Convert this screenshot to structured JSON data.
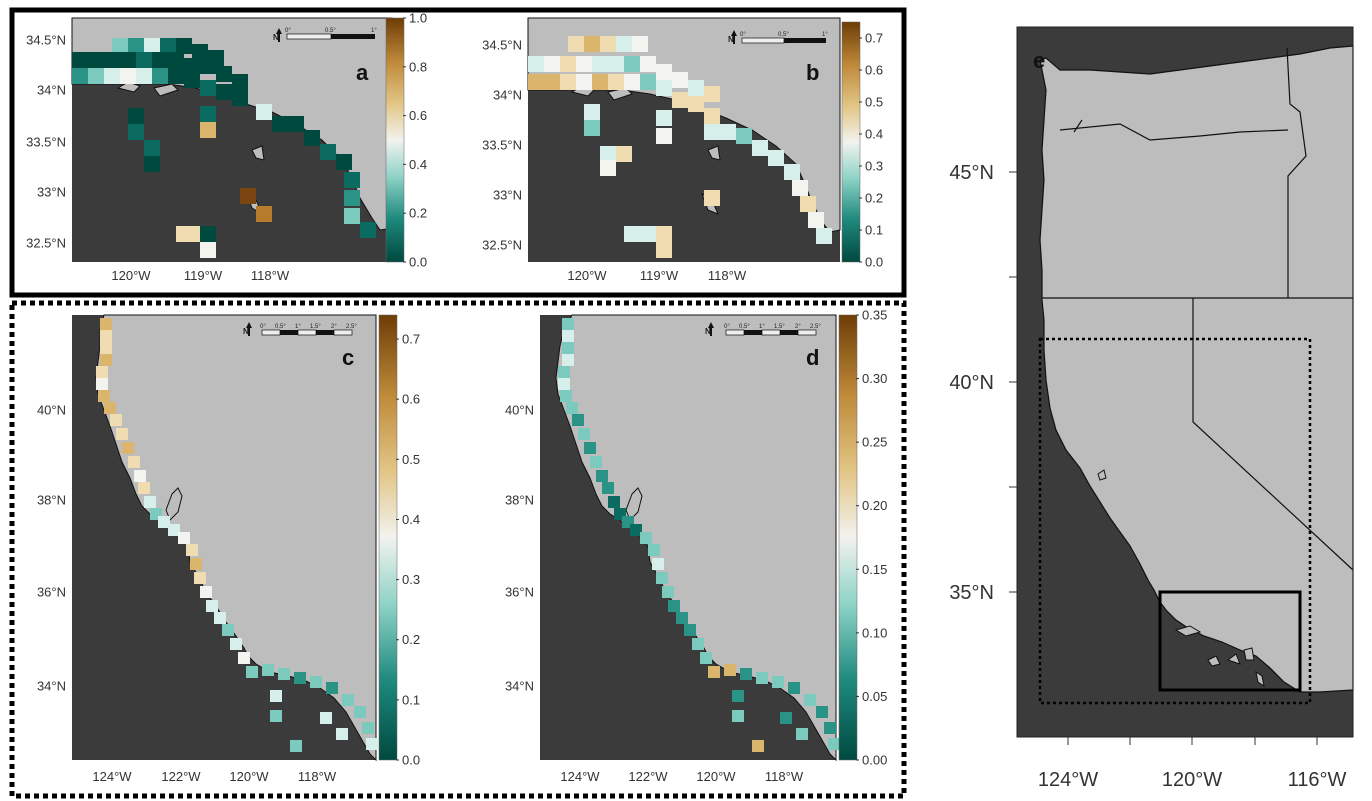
{
  "figure": {
    "panels": [
      {
        "id": "a",
        "letter": "a",
        "x_ticks": [
          "120°W",
          "119°W",
          "118°W"
        ],
        "y_ticks": [
          "34.5°N",
          "34°N",
          "33.5°N",
          "33°N",
          "32.5°N"
        ],
        "colorbar_ticks": [
          "1.0",
          "0.8",
          "0.6",
          "0.4",
          "0.2",
          "0.0"
        ],
        "colorbar_range": [
          0,
          1.0
        ],
        "scalebar_labels": [
          "0°",
          "0.5°",
          "1°"
        ]
      },
      {
        "id": "b",
        "letter": "b",
        "x_ticks": [
          "120°W",
          "119°W",
          "118°W"
        ],
        "y_ticks": [
          "34.5°N",
          "34°N",
          "33.5°N",
          "33°N",
          "32.5°N"
        ],
        "colorbar_ticks": [
          "0.7",
          "0.6",
          "0.5",
          "0.4",
          "0.3",
          "0.2",
          "0.1",
          "0.0"
        ],
        "colorbar_range": [
          0,
          0.75
        ],
        "scalebar_labels": [
          "0°",
          "0.5°",
          "1°"
        ]
      },
      {
        "id": "c",
        "letter": "c",
        "x_ticks": [
          "124°W",
          "122°W",
          "120°W",
          "118°W"
        ],
        "y_ticks": [
          "40°N",
          "38°N",
          "36°N",
          "34°N"
        ],
        "colorbar_ticks": [
          "0.7",
          "0.6",
          "0.5",
          "0.4",
          "0.3",
          "0.2",
          "0.1",
          "0.0"
        ],
        "colorbar_range": [
          0,
          0.74
        ],
        "scalebar_labels": [
          "0°",
          "0.5°",
          "1°",
          "1.5°",
          "2°",
          "2.5°"
        ]
      },
      {
        "id": "d",
        "letter": "d",
        "x_ticks": [
          "124°W",
          "122°W",
          "120°W",
          "118°W"
        ],
        "y_ticks": [
          "40°N",
          "38°N",
          "36°N",
          "34°N"
        ],
        "colorbar_ticks": [
          "0.35",
          "0.30",
          "0.25",
          "0.20",
          "0.15",
          "0.10",
          "0.05",
          "0.00"
        ],
        "colorbar_range": [
          0,
          0.35
        ],
        "scalebar_labels": [
          "0°",
          "0.5°",
          "1°",
          "1.5°",
          "2°",
          "2.5°"
        ]
      },
      {
        "id": "e",
        "letter": "e",
        "x_ticks": [
          "124°W",
          "120°W",
          "116°W"
        ],
        "y_ticks": [
          "45°N",
          "40°N",
          "35°N"
        ]
      }
    ],
    "colors": {
      "ocean": "#3b3b3b",
      "land": "#bdbdbd",
      "low": "#00493f",
      "mid": "#f3f3ef",
      "high": "#6e3d06"
    },
    "north_arrow_label": "N"
  }
}
